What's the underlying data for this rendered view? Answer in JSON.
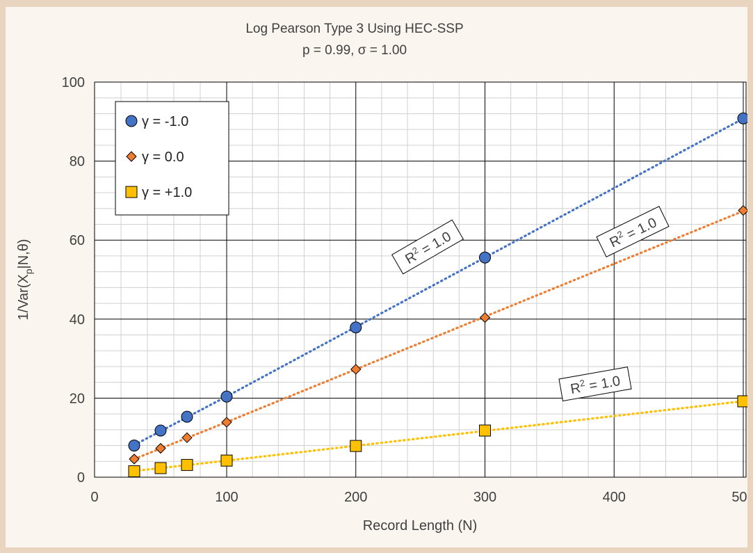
{
  "chart_data": {
    "type": "scatter",
    "title": "Log Pearson Type 3 Using HEC-SSP",
    "subtitle": "p = 0.99, σ = 1.00",
    "xlabel": "Record Length (N)",
    "ylabel_parts": {
      "main": "1/Var(X",
      "sub": "p",
      "tail": "|N,θ)"
    },
    "xlim": [
      0,
      500
    ],
    "ylim": [
      0,
      100
    ],
    "x_ticks": [
      0,
      100,
      200,
      300,
      400,
      500
    ],
    "y_ticks": [
      0,
      20,
      40,
      60,
      80,
      100
    ],
    "grid": {
      "major": true,
      "minor": true
    },
    "x_scale_note": "non-uniform: 0-100 spans half of a 100-unit grid cell width",
    "legend_position": "top-left",
    "series": [
      {
        "name": "γ = -1.0",
        "marker": "circle",
        "color": "#4472c4",
        "trendline": "linear",
        "x": [
          30,
          50,
          70,
          100,
          200,
          300,
          500
        ],
        "y": [
          8.0,
          11.8,
          15.3,
          20.4,
          37.9,
          55.6,
          90.8
        ]
      },
      {
        "name": "γ = 0.0",
        "marker": "diamond",
        "color": "#ed7d31",
        "trendline": "linear",
        "x": [
          30,
          50,
          70,
          100,
          200,
          300,
          500
        ],
        "y": [
          4.6,
          7.3,
          10.0,
          13.9,
          27.3,
          40.4,
          67.5
        ]
      },
      {
        "name": "γ = +1.0",
        "marker": "square",
        "color": "#ffc000",
        "trendline": "linear",
        "x": [
          30,
          50,
          70,
          100,
          200,
          300,
          500
        ],
        "y": [
          1.5,
          2.3,
          3.1,
          4.2,
          7.9,
          11.8,
          19.2
        ]
      }
    ],
    "annotations": [
      {
        "text_main": "R",
        "text_sup": "2",
        "text_tail": " = 1.0",
        "series": "γ = -1.0"
      },
      {
        "text_main": "R",
        "text_sup": "2",
        "text_tail": " = 1.0",
        "series": "γ = 0.0"
      },
      {
        "text_main": "R",
        "text_sup": "2",
        "text_tail": " = 1.0",
        "series": "γ = +1.0"
      }
    ]
  }
}
